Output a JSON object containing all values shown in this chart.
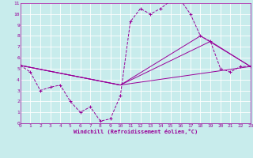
{
  "xlabel": "Windchill (Refroidissement éolien,°C)",
  "xlim": [
    0,
    23
  ],
  "ylim": [
    0,
    11
  ],
  "xticks": [
    0,
    1,
    2,
    3,
    4,
    5,
    6,
    7,
    8,
    9,
    10,
    11,
    12,
    13,
    14,
    15,
    16,
    17,
    18,
    19,
    20,
    21,
    22,
    23
  ],
  "yticks": [
    0,
    1,
    2,
    3,
    4,
    5,
    6,
    7,
    8,
    9,
    10,
    11
  ],
  "bg_color": "#c8ecec",
  "grid_color": "#b0d8d8",
  "line_color": "#990099",
  "axis_color": "#660066",
  "main_line": [
    0,
    5.3,
    1,
    4.7,
    2,
    3.0,
    3,
    3.3,
    4,
    3.5,
    5,
    2.0,
    6,
    1.0,
    7,
    1.5,
    8,
    0.2,
    9,
    0.4,
    10,
    2.5,
    11,
    9.3,
    12,
    10.5,
    13,
    10.0,
    14,
    10.5,
    15,
    11.2,
    16,
    11.3,
    17,
    10.0,
    18,
    8.0,
    19,
    7.5,
    20,
    5.0,
    21,
    4.7,
    22,
    5.2,
    23,
    5.2
  ],
  "straight_lines": [
    [
      0,
      5.3,
      10,
      3.5,
      23,
      5.2
    ],
    [
      0,
      5.3,
      10,
      3.5,
      19,
      7.5,
      23,
      5.2
    ],
    [
      0,
      5.3,
      10,
      3.5,
      18,
      8.0,
      23,
      5.2
    ]
  ]
}
